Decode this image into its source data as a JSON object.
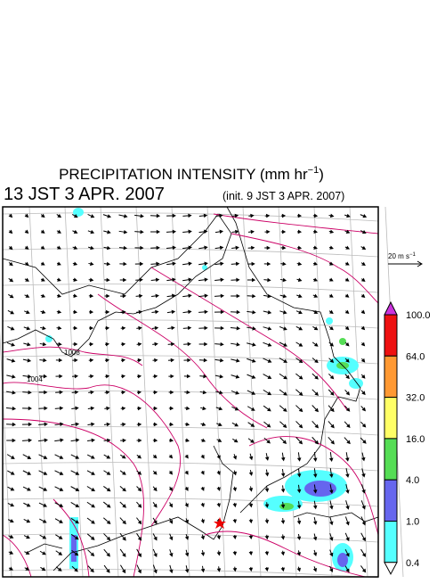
{
  "header": {
    "title": {
      "text": "PRECIPITATION INTENSITY (mm hr",
      "exponent": "−1",
      "close": ")"
    },
    "valid_time": "13 JST 3 APR. 2007",
    "init_time": "(init. 9 JST 3 APR. 2007)"
  },
  "map": {
    "isobar_labels": [
      "1008",
      "1004"
    ]
  },
  "wind_scale": {
    "text": "20 m s",
    "exponent": "−1"
  },
  "colorbar": {
    "labels": [
      "100.0",
      "64.0",
      "32.0",
      "16.0",
      "4.0",
      "1.0",
      "0.4"
    ],
    "colors": [
      "#cc33dd",
      "#ee1111",
      "#ff9933",
      "#ffff66",
      "#55dd55",
      "#6666ee",
      "#55ffff",
      "#ffffff"
    ]
  }
}
